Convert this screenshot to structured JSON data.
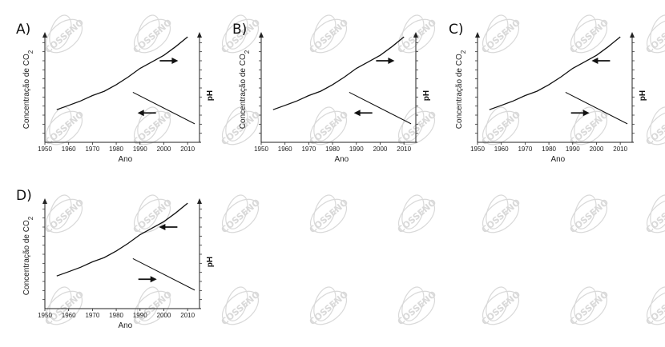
{
  "watermark": {
    "text": "COSSENO",
    "color": "#d9d9d9"
  },
  "chart_data": [
    {
      "type": "line",
      "option": "A)",
      "xlabel": "Ano",
      "ylabel_left": "Concentração de CO",
      "ylabel_left_sub": "2",
      "ylabel_right": "pH",
      "x_ticks": [
        1950,
        1960,
        1970,
        1980,
        1990,
        2000,
        2010
      ],
      "xlim": [
        1950,
        2015
      ],
      "series": [
        {
          "id": "co2",
          "x": [
            1955,
            1960,
            1965,
            1970,
            1975,
            1980,
            1985,
            1990,
            1995,
            2000,
            2005,
            2010
          ],
          "y": [
            0.3,
            0.34,
            0.38,
            0.43,
            0.47,
            0.53,
            0.6,
            0.68,
            0.74,
            0.8,
            0.88,
            0.97
          ]
        },
        {
          "id": "ph",
          "x": [
            1987,
            2013
          ],
          "y": [
            0.46,
            0.17
          ]
        }
      ],
      "arrows": {
        "co2": "right",
        "ph": "left"
      }
    },
    {
      "type": "line",
      "option": "B)",
      "xlabel": "Ano",
      "ylabel_left": "Concentração de CO",
      "ylabel_left_sub": "2",
      "ylabel_right": "pH",
      "x_ticks": [
        1950,
        1960,
        1970,
        1980,
        1990,
        2000,
        2010
      ],
      "xlim": [
        1950,
        2015
      ],
      "series": [
        {
          "id": "co2",
          "x": [
            1955,
            1960,
            1965,
            1970,
            1975,
            1980,
            1985,
            1990,
            1995,
            2000,
            2005,
            2010
          ],
          "y": [
            0.3,
            0.34,
            0.38,
            0.43,
            0.47,
            0.53,
            0.6,
            0.68,
            0.74,
            0.8,
            0.88,
            0.97
          ]
        },
        {
          "id": "ph",
          "x": [
            1987,
            2013
          ],
          "y": [
            0.46,
            0.17
          ]
        }
      ],
      "arrows": {
        "co2": "right",
        "ph": "left"
      }
    },
    {
      "type": "line",
      "option": "C)",
      "xlabel": "Ano",
      "ylabel_left": "Concentração de CO",
      "ylabel_left_sub": "2",
      "ylabel_right": "pH",
      "x_ticks": [
        1950,
        1960,
        1970,
        1980,
        1990,
        2000,
        2010
      ],
      "xlim": [
        1950,
        2015
      ],
      "series": [
        {
          "id": "co2",
          "x": [
            1955,
            1960,
            1965,
            1970,
            1975,
            1980,
            1985,
            1990,
            1995,
            2000,
            2005,
            2010
          ],
          "y": [
            0.3,
            0.34,
            0.38,
            0.43,
            0.47,
            0.53,
            0.6,
            0.68,
            0.74,
            0.8,
            0.88,
            0.97
          ]
        },
        {
          "id": "ph",
          "x": [
            1987,
            2013
          ],
          "y": [
            0.46,
            0.17
          ]
        }
      ],
      "arrows": {
        "co2": "left",
        "ph": "right"
      }
    },
    {
      "type": "line",
      "option": "D)",
      "xlabel": "Ano",
      "ylabel_left": "Concentração de CO",
      "ylabel_left_sub": "2",
      "ylabel_right": "pH",
      "x_ticks": [
        1950,
        1960,
        1970,
        1980,
        1990,
        2000,
        2010
      ],
      "xlim": [
        1950,
        2015
      ],
      "series": [
        {
          "id": "co2",
          "x": [
            1955,
            1960,
            1965,
            1970,
            1975,
            1980,
            1985,
            1990,
            1995,
            2000,
            2005,
            2010
          ],
          "y": [
            0.3,
            0.34,
            0.38,
            0.43,
            0.47,
            0.53,
            0.6,
            0.68,
            0.74,
            0.8,
            0.88,
            0.97
          ]
        },
        {
          "id": "ph",
          "x": [
            1987,
            2013
          ],
          "y": [
            0.46,
            0.17
          ]
        }
      ],
      "arrows": {
        "co2": "left",
        "ph": "right"
      }
    }
  ]
}
